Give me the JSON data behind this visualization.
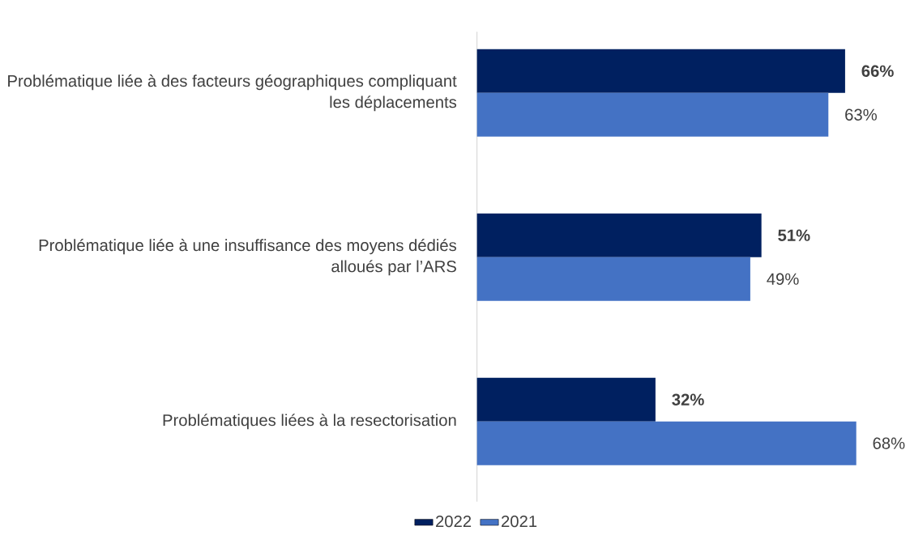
{
  "chart_data": {
    "type": "bar",
    "orientation": "horizontal",
    "categories": [
      "Problématique liée à des facteurs géographiques compliquant les déplacements",
      "Problématique liée à une insuffisance des moyens dédiés alloués par l’ARS",
      "Problématiques liées à la resectorisation"
    ],
    "series": [
      {
        "name": "2022",
        "color": "#002060",
        "values": [
          66,
          51,
          32
        ],
        "value_labels": [
          "66%",
          "51%",
          "32%"
        ]
      },
      {
        "name": "2021",
        "color": "#4472c4",
        "values": [
          63,
          49,
          68
        ],
        "value_labels": [
          "63%",
          "49%",
          "68%"
        ]
      }
    ],
    "legend": "bottom"
  }
}
